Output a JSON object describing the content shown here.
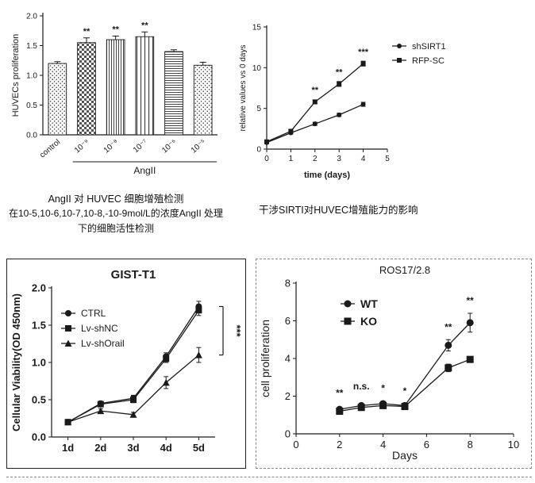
{
  "captions": {
    "angii": "AngII 对 HUVEC 细胞增殖检测",
    "concentration": "在10-5,10-6,10-7,10-8,-10-9mol/L的浓度AngII 处理下的细胞活性检测",
    "sirt1": "干涉SIRTI对HUVEC增殖能力的影响"
  },
  "chart_data": [
    {
      "id": "huvec-bar",
      "type": "bar",
      "ylabel": "HUVECs proliferation",
      "xlabel": "AngII",
      "categories": [
        "control",
        "10⁻⁹",
        "10⁻⁸",
        "10⁻⁷",
        "10⁻⁶",
        "10⁻⁵"
      ],
      "values": [
        1.2,
        1.55,
        1.6,
        1.65,
        1.4,
        1.17
      ],
      "errors": [
        0.03,
        0.08,
        0.06,
        0.08,
        0.03,
        0.05
      ],
      "sig_labels": [
        "",
        "**",
        "**",
        "**",
        "",
        ""
      ],
      "patterns": [
        "stipple",
        "checker",
        "vlines-dense",
        "vlines",
        "hlines",
        "stipple"
      ],
      "ylim": [
        0,
        2.0
      ],
      "yticks": [
        0.0,
        0.5,
        1.0,
        1.5,
        2.0
      ],
      "group_label_span": [
        1,
        5
      ]
    },
    {
      "id": "sirt1-line",
      "type": "line",
      "ylabel": "relative values vs 0 days",
      "xlabel": "time (days)",
      "x": [
        0,
        1,
        2,
        3,
        4
      ],
      "xlim": [
        0,
        5
      ],
      "ylim": [
        0,
        15
      ],
      "xticks": [
        0,
        1,
        2,
        3,
        4,
        5
      ],
      "yticks": [
        0,
        5,
        10,
        15
      ],
      "series": [
        {
          "name": "shSIRT1",
          "marker": "circle",
          "values": [
            0.8,
            2.0,
            3.1,
            4.2,
            5.5
          ],
          "errors": [
            0.1,
            0.15,
            0.2,
            0.2,
            0.25
          ]
        },
        {
          "name": "RFP-SC",
          "marker": "square",
          "values": [
            0.9,
            2.2,
            5.8,
            8.0,
            10.5
          ],
          "errors": [
            0.1,
            0.15,
            0.25,
            0.3,
            0.3
          ]
        }
      ],
      "annotations": [
        {
          "x": 2,
          "y": 6.9,
          "text": "**"
        },
        {
          "x": 3,
          "y": 9.1,
          "text": "**"
        },
        {
          "x": 4,
          "y": 11.6,
          "text": "***"
        }
      ],
      "legend_pos": "right"
    },
    {
      "id": "gist-t1",
      "type": "line",
      "title": "GIST-T1",
      "ylabel": "Cellular Viability(OD 450nm)",
      "categories": [
        "1d",
        "2d",
        "3d",
        "4d",
        "5d"
      ],
      "ylim": [
        0,
        2.0
      ],
      "yticks": [
        0.0,
        0.5,
        1.0,
        1.5,
        2.0
      ],
      "series": [
        {
          "name": "CTRL",
          "marker": "circle",
          "values": [
            0.2,
            0.45,
            0.52,
            1.08,
            1.75
          ],
          "errors": [
            0.02,
            0.03,
            0.04,
            0.05,
            0.07
          ]
        },
        {
          "name": "Lv-shNC",
          "marker": "square",
          "values": [
            0.2,
            0.44,
            0.5,
            1.05,
            1.7
          ],
          "errors": [
            0.02,
            0.03,
            0.04,
            0.05,
            0.07
          ]
        },
        {
          "name": "Lv-shOrail",
          "marker": "triangle",
          "values": [
            0.2,
            0.35,
            0.3,
            0.73,
            1.1
          ],
          "errors": [
            0.02,
            0.03,
            0.03,
            0.08,
            0.1
          ]
        }
      ],
      "bracket": {
        "text": "***",
        "y_top": 1.75,
        "y_bottom": 1.1
      },
      "legend_pos": "inside-top-left"
    },
    {
      "id": "ros17-2-8",
      "type": "line",
      "title": "ROS17/2.8",
      "ylabel": "cell proliferation",
      "xlabel": "Days",
      "x": [
        2,
        3,
        4,
        5,
        7,
        8
      ],
      "xlim": [
        0,
        10
      ],
      "ylim": [
        0,
        8
      ],
      "xticks": [
        0,
        2,
        4,
        6,
        8,
        10
      ],
      "yticks": [
        0,
        2,
        4,
        6,
        8
      ],
      "series": [
        {
          "name": "WT",
          "marker": "circle",
          "values": [
            1.3,
            1.5,
            1.6,
            1.5,
            4.7,
            5.9
          ],
          "errors": [
            0.1,
            0.1,
            0.12,
            0.12,
            0.3,
            0.5
          ]
        },
        {
          "name": "KO",
          "marker": "square",
          "values": [
            1.2,
            1.4,
            1.5,
            1.45,
            3.5,
            3.95
          ],
          "errors": [
            0.08,
            0.08,
            0.1,
            0.1,
            0.2,
            0.15
          ]
        }
      ],
      "annotations": [
        {
          "x": 2,
          "y": 2.0,
          "text": "**"
        },
        {
          "x": 3,
          "y": 2.35,
          "text": "n.s."
        },
        {
          "x": 4,
          "y": 2.25,
          "text": "*"
        },
        {
          "x": 5,
          "y": 2.1,
          "text": "*"
        },
        {
          "x": 7,
          "y": 5.5,
          "text": "**"
        },
        {
          "x": 8,
          "y": 6.9,
          "text": "**"
        }
      ],
      "legend_pos": "inside-top-left"
    }
  ]
}
